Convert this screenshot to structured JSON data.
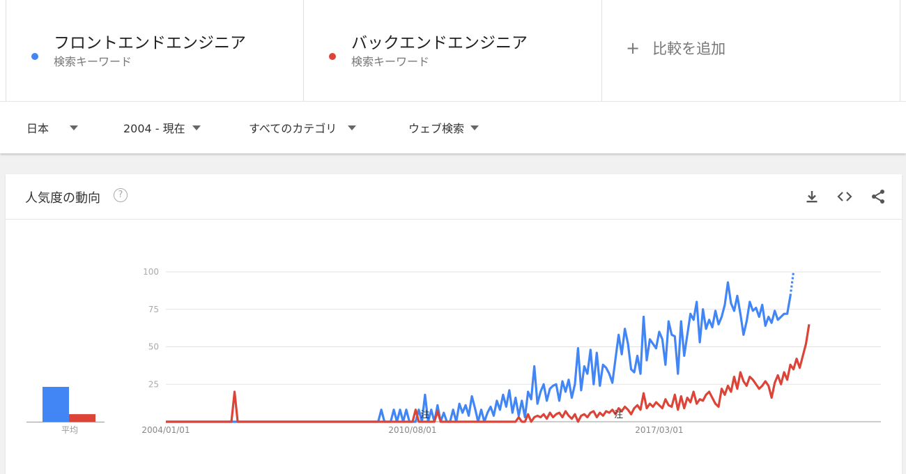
{
  "terms": [
    {
      "name": "フロントエンドエンジニア",
      "subtitle": "検索キーワード",
      "color": "#4285f4"
    },
    {
      "name": "バックエンドエンジニア",
      "subtitle": "検索キーワード",
      "color": "#db4437"
    }
  ],
  "add_term": {
    "icon": "plus-icon",
    "label": "比較を追加"
  },
  "filters": {
    "region": "日本",
    "period": "2004 - 現在",
    "category": "すべてのカテゴリ",
    "search_type": "ウェブ検索"
  },
  "card": {
    "title": "人気度の動向",
    "help_icon": "?",
    "actions": [
      "download-icon",
      "embed-code-icon",
      "share-icon"
    ]
  },
  "average": {
    "label": "平均",
    "values": [
      {
        "series": "フロントエンドエンジニア",
        "value": 23
      },
      {
        "series": "バックエンドエンジニア",
        "value": 5
      }
    ]
  },
  "chart_data": {
    "type": "line",
    "y_ticks": [
      25,
      50,
      75,
      100
    ],
    "ylim": [
      0,
      100
    ],
    "x_tick_labels": [
      "2004/01/01",
      "2010/08/01",
      "2017/03/01"
    ],
    "annotations": [
      "注",
      "注"
    ],
    "x_range": [
      "2004-01",
      "2023-02"
    ],
    "grid": true,
    "series": [
      {
        "name": "フロントエンドエンジニア",
        "color": "#4285f4",
        "partial_last_segment": true,
        "points": [
          [
            "2004-01",
            0
          ],
          [
            "2009-09",
            0
          ],
          [
            "2009-10",
            8
          ],
          [
            "2009-11",
            0
          ],
          [
            "2010-01",
            0
          ],
          [
            "2010-02",
            8
          ],
          [
            "2010-03",
            0
          ],
          [
            "2010-04",
            8
          ],
          [
            "2010-05",
            0
          ],
          [
            "2010-06",
            8
          ],
          [
            "2010-07",
            0
          ],
          [
            "2010-08",
            0
          ],
          [
            "2010-09",
            0
          ],
          [
            "2010-10",
            8
          ],
          [
            "2010-11",
            0
          ],
          [
            "2010-12",
            18
          ],
          [
            "2011-01",
            0
          ],
          [
            "2011-02",
            8
          ],
          [
            "2011-03",
            0
          ],
          [
            "2011-04",
            11
          ],
          [
            "2011-05",
            0
          ],
          [
            "2011-06",
            6
          ],
          [
            "2011-07",
            0
          ],
          [
            "2011-08",
            0
          ],
          [
            "2011-09",
            8
          ],
          [
            "2011-10",
            0
          ],
          [
            "2011-11",
            12
          ],
          [
            "2011-12",
            6
          ],
          [
            "2012-01",
            11
          ],
          [
            "2012-02",
            4
          ],
          [
            "2012-03",
            17
          ],
          [
            "2012-04",
            9
          ],
          [
            "2012-05",
            0
          ],
          [
            "2012-06",
            8
          ],
          [
            "2012-07",
            0
          ],
          [
            "2012-08",
            6
          ],
          [
            "2012-09",
            10
          ],
          [
            "2012-10",
            4
          ],
          [
            "2012-11",
            14
          ],
          [
            "2012-12",
            8
          ],
          [
            "2013-01",
            18
          ],
          [
            "2013-02",
            10
          ],
          [
            "2013-03",
            21
          ],
          [
            "2013-04",
            6
          ],
          [
            "2013-05",
            16
          ],
          [
            "2013-06",
            4
          ],
          [
            "2013-07",
            14
          ],
          [
            "2013-08",
            3
          ],
          [
            "2013-09",
            20
          ],
          [
            "2013-10",
            15
          ],
          [
            "2013-11",
            37
          ],
          [
            "2013-12",
            12
          ],
          [
            "2014-01",
            20
          ],
          [
            "2014-02",
            25
          ],
          [
            "2014-03",
            14
          ],
          [
            "2014-04",
            22
          ],
          [
            "2014-05",
            24
          ],
          [
            "2014-06",
            25
          ],
          [
            "2014-07",
            14
          ],
          [
            "2014-08",
            27
          ],
          [
            "2014-09",
            20
          ],
          [
            "2014-10",
            28
          ],
          [
            "2014-11",
            16
          ],
          [
            "2014-12",
            25
          ],
          [
            "2015-01",
            49
          ],
          [
            "2015-02",
            21
          ],
          [
            "2015-03",
            37
          ],
          [
            "2015-04",
            32
          ],
          [
            "2015-05",
            48
          ],
          [
            "2015-06",
            25
          ],
          [
            "2015-07",
            46
          ],
          [
            "2015-08",
            24
          ],
          [
            "2015-09",
            38
          ],
          [
            "2015-10",
            36
          ],
          [
            "2015-11",
            32
          ],
          [
            "2015-12",
            26
          ],
          [
            "2016-01",
            42
          ],
          [
            "2016-02",
            58
          ],
          [
            "2016-03",
            45
          ],
          [
            "2016-04",
            62
          ],
          [
            "2016-05",
            52
          ],
          [
            "2016-06",
            35
          ],
          [
            "2016-07",
            33
          ],
          [
            "2016-08",
            44
          ],
          [
            "2016-09",
            32
          ],
          [
            "2016-10",
            70
          ],
          [
            "2016-11",
            41
          ],
          [
            "2016-12",
            55
          ],
          [
            "2017-01",
            52
          ],
          [
            "2017-02",
            49
          ],
          [
            "2017-03",
            60
          ],
          [
            "2017-04",
            55
          ],
          [
            "2017-05",
            38
          ],
          [
            "2017-06",
            67
          ],
          [
            "2017-07",
            58
          ],
          [
            "2017-08",
            57
          ],
          [
            "2017-09",
            32
          ],
          [
            "2017-10",
            67
          ],
          [
            "2017-11",
            44
          ],
          [
            "2017-12",
            58
          ],
          [
            "2018-01",
            72
          ],
          [
            "2018-02",
            68
          ],
          [
            "2018-03",
            80
          ],
          [
            "2018-04",
            53
          ],
          [
            "2018-05",
            75
          ],
          [
            "2018-06",
            62
          ],
          [
            "2018-07",
            68
          ],
          [
            "2018-08",
            63
          ],
          [
            "2018-09",
            74
          ],
          [
            "2018-10",
            65
          ],
          [
            "2018-11",
            70
          ],
          [
            "2018-12",
            78
          ],
          [
            "2019-01",
            93
          ],
          [
            "2019-02",
            79
          ],
          [
            "2019-03",
            74
          ],
          [
            "2019-04",
            84
          ],
          [
            "2019-05",
            72
          ],
          [
            "2019-06",
            58
          ],
          [
            "2019-07",
            67
          ],
          [
            "2019-08",
            80
          ],
          [
            "2019-09",
            74
          ],
          [
            "2019-10",
            76
          ],
          [
            "2019-11",
            70
          ],
          [
            "2019-12",
            78
          ],
          [
            "2020-01",
            64
          ],
          [
            "2020-02",
            70
          ],
          [
            "2020-03",
            66
          ],
          [
            "2020-04",
            74
          ],
          [
            "2020-05",
            68
          ],
          [
            "2020-06",
            70
          ],
          [
            "2020-07",
            72
          ],
          [
            "2020-08",
            72
          ],
          [
            "2020-09",
            84
          ],
          [
            "2020-10",
            100
          ]
        ]
      },
      {
        "name": "バックエンドエンジニア",
        "color": "#db4437",
        "partial_last_segment": false,
        "points": [
          [
            "2004-01",
            0
          ],
          [
            "2005-10",
            0
          ],
          [
            "2005-11",
            20
          ],
          [
            "2005-12",
            0
          ],
          [
            "2010-08",
            0
          ],
          [
            "2010-09",
            8
          ],
          [
            "2010-10",
            0
          ],
          [
            "2011-03",
            0
          ],
          [
            "2011-04",
            7
          ],
          [
            "2011-05",
            0
          ],
          [
            "2013-05",
            0
          ],
          [
            "2013-06",
            3
          ],
          [
            "2013-07",
            0
          ],
          [
            "2013-08",
            0
          ],
          [
            "2013-09",
            5
          ],
          [
            "2013-10",
            0
          ],
          [
            "2013-11",
            3
          ],
          [
            "2013-12",
            4
          ],
          [
            "2014-01",
            3
          ],
          [
            "2014-02",
            5
          ],
          [
            "2014-03",
            2
          ],
          [
            "2014-04",
            6
          ],
          [
            "2014-05",
            3
          ],
          [
            "2014-06",
            5
          ],
          [
            "2014-07",
            6
          ],
          [
            "2014-08",
            3
          ],
          [
            "2014-09",
            7
          ],
          [
            "2014-10",
            4
          ],
          [
            "2014-11",
            2
          ],
          [
            "2014-12",
            5
          ],
          [
            "2015-01",
            0
          ],
          [
            "2015-02",
            4
          ],
          [
            "2015-03",
            5
          ],
          [
            "2015-04",
            3
          ],
          [
            "2015-05",
            6
          ],
          [
            "2015-06",
            7
          ],
          [
            "2015-07",
            3
          ],
          [
            "2015-08",
            6
          ],
          [
            "2015-09",
            4
          ],
          [
            "2015-10",
            7
          ],
          [
            "2015-11",
            6
          ],
          [
            "2015-12",
            8
          ],
          [
            "2016-01",
            5
          ],
          [
            "2016-02",
            9
          ],
          [
            "2016-03",
            7
          ],
          [
            "2016-04",
            10
          ],
          [
            "2016-05",
            8
          ],
          [
            "2016-06",
            5
          ],
          [
            "2016-07",
            9
          ],
          [
            "2016-08",
            11
          ],
          [
            "2016-09",
            8
          ],
          [
            "2016-10",
            19
          ],
          [
            "2016-11",
            9
          ],
          [
            "2016-12",
            12
          ],
          [
            "2017-01",
            10
          ],
          [
            "2017-02",
            13
          ],
          [
            "2017-03",
            11
          ],
          [
            "2017-04",
            9
          ],
          [
            "2017-05",
            15
          ],
          [
            "2017-06",
            11
          ],
          [
            "2017-07",
            10
          ],
          [
            "2017-08",
            18
          ],
          [
            "2017-09",
            8
          ],
          [
            "2017-10",
            17
          ],
          [
            "2017-11",
            9
          ],
          [
            "2017-12",
            16
          ],
          [
            "2018-01",
            13
          ],
          [
            "2018-02",
            20
          ],
          [
            "2018-03",
            12
          ],
          [
            "2018-04",
            15
          ],
          [
            "2018-05",
            14
          ],
          [
            "2018-06",
            18
          ],
          [
            "2018-07",
            20
          ],
          [
            "2018-08",
            16
          ],
          [
            "2018-09",
            12
          ],
          [
            "2018-10",
            10
          ],
          [
            "2018-11",
            22
          ],
          [
            "2018-12",
            18
          ],
          [
            "2019-01",
            24
          ],
          [
            "2019-02",
            20
          ],
          [
            "2019-03",
            30
          ],
          [
            "2019-04",
            22
          ],
          [
            "2019-05",
            33
          ],
          [
            "2019-06",
            27
          ],
          [
            "2019-07",
            24
          ],
          [
            "2019-08",
            30
          ],
          [
            "2019-09",
            28
          ],
          [
            "2019-10",
            25
          ],
          [
            "2019-11",
            22
          ],
          [
            "2019-12",
            24
          ],
          [
            "2020-01",
            27
          ],
          [
            "2020-02",
            24
          ],
          [
            "2020-03",
            16
          ],
          [
            "2020-04",
            26
          ],
          [
            "2020-05",
            31
          ],
          [
            "2020-06",
            25
          ],
          [
            "2020-07",
            33
          ],
          [
            "2020-08",
            28
          ],
          [
            "2020-09",
            38
          ],
          [
            "2020-10",
            35
          ],
          [
            "2020-11",
            42
          ],
          [
            "2020-12",
            36
          ],
          [
            "2021-01",
            44
          ],
          [
            "2021-02",
            52
          ],
          [
            "2021-03",
            65
          ]
        ]
      }
    ]
  }
}
